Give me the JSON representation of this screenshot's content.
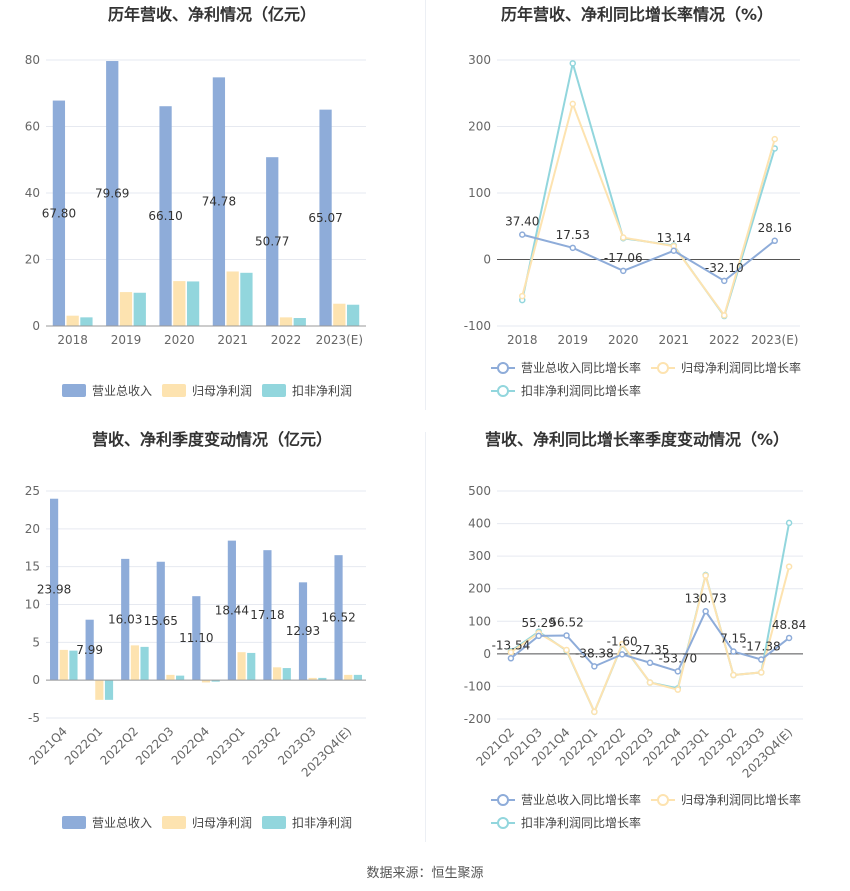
{
  "source_text": "数据来源：恒生聚源",
  "colors": {
    "revenue": "#8eacd9",
    "net_profit": "#fde3b0",
    "deducted": "#92d6dd",
    "grid": "#e6e9f0",
    "axis_text": "#666666",
    "label_text": "#333333"
  },
  "chart_data": [
    {
      "type": "bar",
      "title": "历年营收、净利情况（亿元）",
      "categories": [
        "2018",
        "2019",
        "2020",
        "2021",
        "2022",
        "2023(E)"
      ],
      "ylim": [
        0,
        80
      ],
      "yticks": [
        0,
        20,
        40,
        60,
        80
      ],
      "series": [
        {
          "name": "营业总收入",
          "values": [
            67.8,
            79.69,
            66.1,
            74.78,
            50.77,
            65.07
          ],
          "labels": [
            "67.80",
            "79.69",
            "66.10",
            "74.78",
            "50.77",
            "65.07"
          ]
        },
        {
          "name": "归母净利润",
          "values": [
            3.1,
            10.2,
            13.5,
            16.4,
            2.6,
            6.7
          ]
        },
        {
          "name": "扣非净利润",
          "values": [
            2.6,
            10.0,
            13.4,
            16.0,
            2.4,
            6.4
          ]
        }
      ],
      "legend": [
        "营业总收入",
        "归母净利润",
        "扣非净利润"
      ],
      "grid": true,
      "legend_position": "bottom"
    },
    {
      "type": "line",
      "title": "历年营收、净利同比增长率情况（%）",
      "categories": [
        "2018",
        "2019",
        "2020",
        "2021",
        "2022",
        "2023(E)"
      ],
      "ylim": [
        -100,
        300
      ],
      "yticks": [
        -100,
        0,
        100,
        200,
        300
      ],
      "series": [
        {
          "name": "营业总收入同比增长率",
          "values": [
            37.4,
            17.53,
            -17.06,
            13.14,
            -32.1,
            28.16
          ],
          "labels": [
            "37.40",
            "17.53",
            "-17.06",
            "13.14",
            "-32.10",
            "28.16"
          ]
        },
        {
          "name": "归母净利润同比增长率",
          "values": [
            -55,
            234,
            33,
            20,
            -84,
            181
          ]
        },
        {
          "name": "扣非净利润同比增长率",
          "values": [
            -61,
            295,
            32,
            21,
            -85,
            167
          ]
        }
      ],
      "legend": [
        "营业总收入同比增长率",
        "归母净利润同比增长率",
        "扣非净利润同比增长率"
      ],
      "grid": true,
      "legend_position": "bottom"
    },
    {
      "type": "bar",
      "title": "营收、净利季度变动情况（亿元）",
      "categories": [
        "2021Q4",
        "2022Q1",
        "2022Q2",
        "2022Q3",
        "2022Q4",
        "2023Q1",
        "2023Q2",
        "2023Q3",
        "2023Q4(E)"
      ],
      "ylim": [
        -5,
        25
      ],
      "yticks": [
        -5,
        0,
        5,
        10,
        15,
        20,
        25
      ],
      "series": [
        {
          "name": "营业总收入",
          "values": [
            23.98,
            7.99,
            16.03,
            15.65,
            11.1,
            18.44,
            17.18,
            12.93,
            16.52
          ],
          "labels": [
            "23.98",
            "7.99",
            "16.03",
            "15.65",
            "11.10",
            "18.44",
            "17.18",
            "12.93",
            "16.52"
          ]
        },
        {
          "name": "归母净利润",
          "values": [
            4.0,
            -2.6,
            4.6,
            0.7,
            -0.3,
            3.7,
            1.7,
            0.3,
            0.7
          ]
        },
        {
          "name": "扣非净利润",
          "values": [
            3.9,
            -2.6,
            4.4,
            0.6,
            -0.2,
            3.6,
            1.6,
            0.3,
            0.7
          ]
        }
      ],
      "legend": [
        "营业总收入",
        "归母净利润",
        "扣非净利润"
      ],
      "grid": true,
      "legend_position": "bottom"
    },
    {
      "type": "line",
      "title": "营收、净利同比增长率季度变动情况（%）",
      "categories": [
        "2021Q2",
        "2021Q3",
        "2021Q4",
        "2022Q1",
        "2022Q2",
        "2022Q3",
        "2022Q4",
        "2023Q1",
        "2023Q2",
        "2023Q3",
        "2023Q4(E)"
      ],
      "ylim": [
        -200,
        500
      ],
      "yticks": [
        -200,
        -100,
        0,
        100,
        200,
        300,
        400,
        500
      ],
      "series": [
        {
          "name": "营业总收入同比增长率",
          "values": [
            -13.54,
            55.29,
            56.52,
            -38.38,
            -1.6,
            -27.35,
            -53.7,
            130.73,
            7.15,
            -17.38,
            48.84
          ],
          "labels": [
            "-13.54",
            "55.29",
            "56.52",
            "-38.38",
            "-1.60",
            "-27.35",
            "-53.70",
            "130.73",
            "7.15",
            "-17.38",
            "48.84"
          ]
        },
        {
          "name": "归母净利润同比增长率",
          "values": [
            5,
            64,
            12,
            -178,
            30,
            -88,
            -110,
            240,
            -65,
            -57,
            268
          ]
        },
        {
          "name": "扣非净利润同比增长率",
          "values": [
            8,
            68,
            10,
            -178,
            28,
            -88,
            -106,
            242,
            -65,
            -57,
            402
          ]
        }
      ],
      "legend": [
        "营业总收入同比增长率",
        "归母净利润同比增长率",
        "扣非净利润同比增长率"
      ],
      "grid": true,
      "legend_position": "bottom"
    }
  ]
}
